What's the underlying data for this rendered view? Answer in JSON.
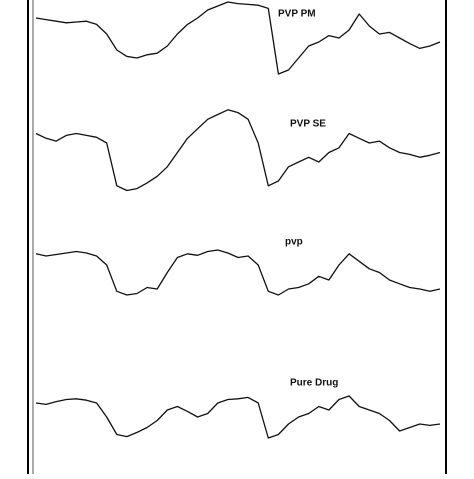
{
  "chart_data": [
    {
      "type": "line",
      "title": "PVP PM",
      "color": "#111111",
      "ylim": [
        0,
        100
      ],
      "values": [
        80,
        78,
        76,
        74,
        75,
        76,
        72,
        60,
        40,
        32,
        30,
        34,
        36,
        45,
        60,
        72,
        80,
        90,
        95,
        100,
        98,
        97,
        96,
        92,
        10,
        15,
        30,
        45,
        50,
        58,
        55,
        65,
        85,
        70,
        60,
        62,
        55,
        48,
        42,
        45,
        50
      ]
    },
    {
      "type": "line",
      "title": "PVP SE",
      "color": "#111111",
      "ylim": [
        0,
        100
      ],
      "values": [
        70,
        65,
        62,
        68,
        70,
        68,
        66,
        60,
        15,
        10,
        12,
        18,
        25,
        35,
        50,
        65,
        75,
        85,
        90,
        95,
        92,
        85,
        60,
        15,
        20,
        35,
        40,
        45,
        40,
        50,
        55,
        70,
        65,
        60,
        62,
        55,
        50,
        48,
        45,
        47,
        50
      ]
    },
    {
      "type": "line",
      "title": "pvp",
      "color": "#111111",
      "ylim": [
        0,
        100
      ],
      "values": [
        75,
        72,
        74,
        76,
        78,
        76,
        72,
        60,
        25,
        20,
        22,
        30,
        28,
        50,
        70,
        75,
        73,
        78,
        80,
        76,
        70,
        72,
        60,
        25,
        20,
        28,
        30,
        35,
        45,
        40,
        60,
        75,
        65,
        55,
        50,
        40,
        35,
        30,
        28,
        25,
        28
      ]
    },
    {
      "type": "line",
      "title": "Pure Drug",
      "color": "#111111",
      "ylim": [
        0,
        100
      ],
      "values": [
        60,
        58,
        62,
        65,
        66,
        64,
        60,
        40,
        15,
        12,
        18,
        25,
        35,
        50,
        55,
        48,
        40,
        45,
        60,
        65,
        66,
        68,
        60,
        10,
        15,
        30,
        40,
        45,
        55,
        50,
        65,
        70,
        55,
        50,
        45,
        35,
        20,
        25,
        30,
        28,
        30
      ]
    }
  ]
}
